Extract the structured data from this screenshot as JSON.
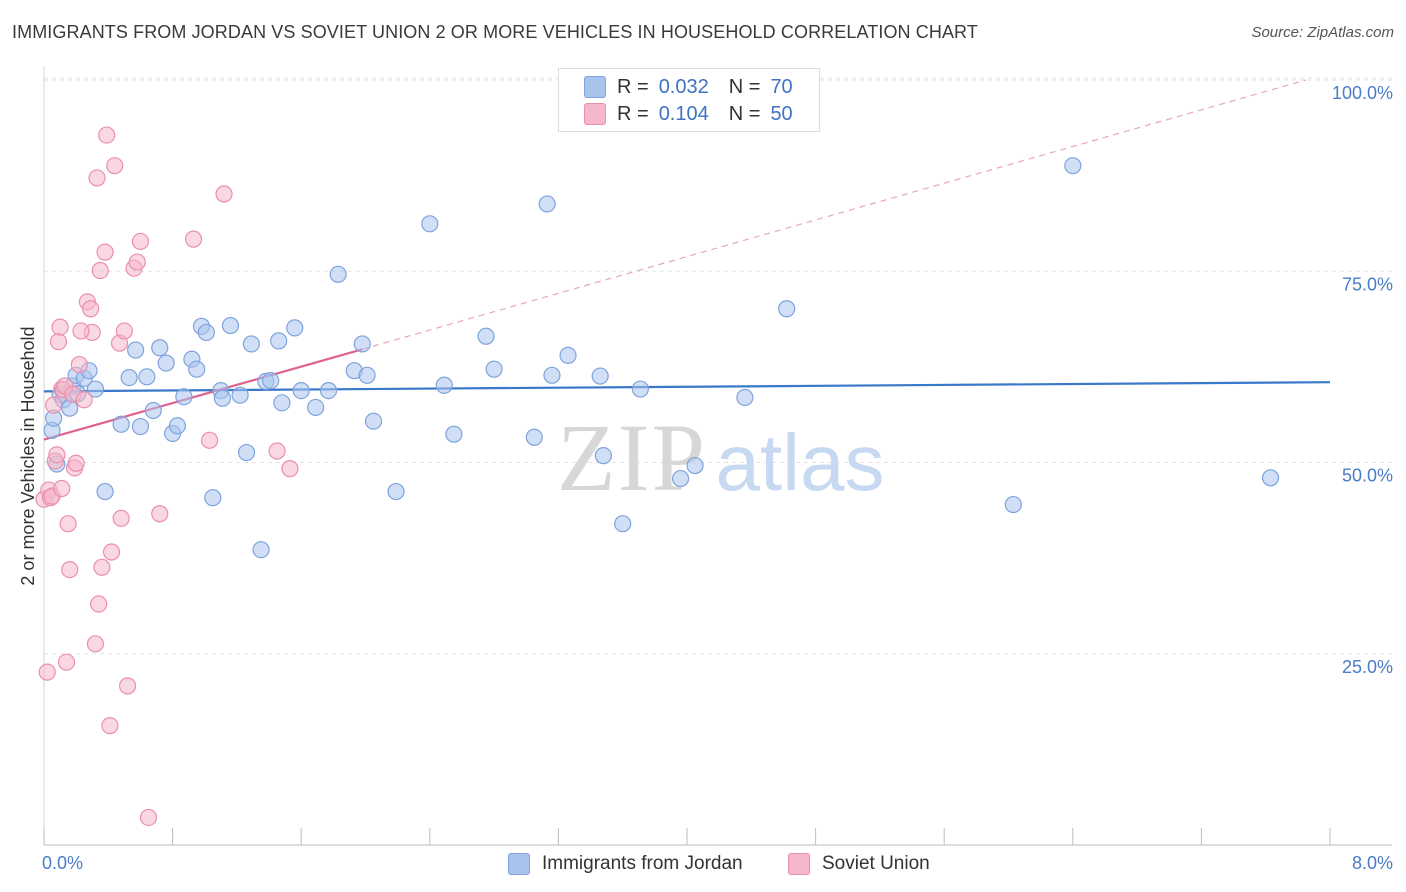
{
  "title": "IMMIGRANTS FROM JORDAN VS SOVIET UNION 2 OR MORE VEHICLES IN HOUSEHOLD CORRELATION CHART",
  "source": "Source: ZipAtlas.com",
  "watermark": {
    "zip": "ZIP",
    "atlas": "atlas"
  },
  "legend_top": [
    {
      "r_label": "R =",
      "r_value": "0.032",
      "n_label": "N =",
      "n_value": "70"
    },
    {
      "r_label": "R =",
      "r_value": "0.104",
      "n_label": "N =",
      "n_value": "50"
    }
  ],
  "colors": {
    "jordan_fill": "#a9c4ec",
    "jordan_stroke": "#7ea3dc",
    "jordan_line": "#3a78c9",
    "soviet_fill": "#f5b8cb",
    "soviet_stroke": "#ea8fad",
    "soviet_line": "#e0608e",
    "grid": "#e3e3e3",
    "axis_label": "#4a7cc8"
  },
  "chart_data": {
    "type": "scatter",
    "title": "IMMIGRANTS FROM JORDAN VS SOVIET UNION 2 OR MORE VEHICLES IN HOUSEHOLD CORRELATION CHART",
    "xlabel": "",
    "ylabel": "2 or more Vehicles in Household",
    "xlim": [
      0,
      8
    ],
    "ylim": [
      0,
      100
    ],
    "x_tick_labels": [
      "0.0%",
      "8.0%"
    ],
    "y_ticks": [
      25,
      50,
      75,
      100
    ],
    "y_tick_labels": [
      "25.0%",
      "50.0%",
      "75.0%",
      "100.0%"
    ],
    "grid": true,
    "legend": "bottom-center",
    "series": [
      {
        "name": "Immigrants from Jordan",
        "R": 0.032,
        "N": 70,
        "trend": {
          "x0": 0.0,
          "y0": 59.3,
          "x1": 8.0,
          "y1": 60.5,
          "dashed_ext": false
        },
        "points": [
          [
            0.05,
            54.2
          ],
          [
            0.08,
            49.8
          ],
          [
            0.1,
            58.9
          ],
          [
            0.12,
            58.2
          ],
          [
            0.16,
            57.1
          ],
          [
            0.18,
            60.0
          ],
          [
            0.2,
            61.4
          ],
          [
            0.25,
            61.0
          ],
          [
            0.28,
            62.0
          ],
          [
            0.32,
            59.6
          ],
          [
            0.38,
            46.2
          ],
          [
            0.48,
            55.0
          ],
          [
            0.53,
            61.1
          ],
          [
            0.57,
            64.7
          ],
          [
            0.6,
            54.7
          ],
          [
            0.64,
            61.2
          ],
          [
            0.68,
            56.8
          ],
          [
            0.72,
            65.0
          ],
          [
            0.76,
            63.0
          ],
          [
            0.8,
            53.8
          ],
          [
            0.83,
            54.8
          ],
          [
            0.87,
            58.6
          ],
          [
            0.92,
            63.5
          ],
          [
            0.95,
            62.2
          ],
          [
            0.98,
            67.8
          ],
          [
            1.01,
            67.0
          ],
          [
            1.05,
            45.4
          ],
          [
            1.1,
            59.4
          ],
          [
            1.11,
            58.4
          ],
          [
            1.16,
            67.9
          ],
          [
            1.22,
            58.8
          ],
          [
            1.26,
            51.3
          ],
          [
            1.29,
            65.5
          ],
          [
            1.35,
            38.6
          ],
          [
            1.38,
            60.6
          ],
          [
            1.41,
            60.7
          ],
          [
            1.46,
            65.9
          ],
          [
            1.48,
            57.8
          ],
          [
            1.56,
            67.6
          ],
          [
            1.6,
            59.4
          ],
          [
            1.69,
            57.2
          ],
          [
            1.77,
            59.4
          ],
          [
            1.83,
            74.6
          ],
          [
            1.93,
            62.0
          ],
          [
            1.98,
            65.5
          ],
          [
            2.01,
            61.4
          ],
          [
            2.05,
            55.4
          ],
          [
            2.19,
            46.2
          ],
          [
            2.4,
            81.2
          ],
          [
            2.49,
            60.1
          ],
          [
            2.55,
            53.7
          ],
          [
            2.75,
            66.5
          ],
          [
            2.8,
            62.2
          ],
          [
            3.05,
            53.3
          ],
          [
            3.13,
            83.8
          ],
          [
            3.16,
            61.4
          ],
          [
            3.26,
            64.0
          ],
          [
            3.46,
            61.3
          ],
          [
            3.48,
            50.9
          ],
          [
            3.6,
            42.0
          ],
          [
            3.71,
            59.6
          ],
          [
            3.96,
            47.9
          ],
          [
            4.05,
            49.6
          ],
          [
            4.36,
            58.5
          ],
          [
            4.62,
            70.1
          ],
          [
            6.03,
            44.5
          ],
          [
            6.4,
            88.8
          ],
          [
            7.63,
            48.0
          ],
          [
            0.06,
            55.8
          ],
          [
            0.21,
            59.0
          ]
        ]
      },
      {
        "name": "Soviet Union",
        "R": 0.104,
        "N": 50,
        "trend": {
          "x0": 0.0,
          "y0": 53.0,
          "x1": 1.98,
          "y1": 64.8,
          "dashed_ext": true,
          "x_ext": 7.85,
          "y_ext": 100.0
        },
        "points": [
          [
            0.0,
            45.2
          ],
          [
            0.02,
            22.6
          ],
          [
            0.03,
            46.4
          ],
          [
            0.04,
            45.4
          ],
          [
            0.05,
            45.6
          ],
          [
            0.06,
            57.5
          ],
          [
            0.07,
            50.2
          ],
          [
            0.09,
            65.8
          ],
          [
            0.1,
            67.7
          ],
          [
            0.11,
            59.6
          ],
          [
            0.12,
            59.5
          ],
          [
            0.13,
            60.0
          ],
          [
            0.14,
            23.9
          ],
          [
            0.15,
            42.0
          ],
          [
            0.16,
            36.0
          ],
          [
            0.18,
            58.9
          ],
          [
            0.19,
            49.3
          ],
          [
            0.2,
            49.9
          ],
          [
            0.22,
            62.8
          ],
          [
            0.25,
            58.2
          ],
          [
            0.27,
            71.0
          ],
          [
            0.29,
            70.1
          ],
          [
            0.3,
            67.0
          ],
          [
            0.32,
            26.3
          ],
          [
            0.33,
            87.2
          ],
          [
            0.34,
            31.5
          ],
          [
            0.35,
            75.1
          ],
          [
            0.36,
            36.3
          ],
          [
            0.38,
            77.5
          ],
          [
            0.39,
            92.8
          ],
          [
            0.41,
            15.6
          ],
          [
            0.42,
            38.3
          ],
          [
            0.44,
            88.8
          ],
          [
            0.47,
            65.6
          ],
          [
            0.48,
            42.7
          ],
          [
            0.5,
            67.2
          ],
          [
            0.52,
            20.8
          ],
          [
            0.56,
            75.4
          ],
          [
            0.58,
            76.2
          ],
          [
            0.6,
            78.9
          ],
          [
            0.65,
            3.6
          ],
          [
            0.72,
            43.3
          ],
          [
            0.93,
            79.2
          ],
          [
            1.03,
            52.9
          ],
          [
            1.12,
            85.1
          ],
          [
            1.45,
            51.5
          ],
          [
            1.53,
            49.2
          ],
          [
            0.11,
            46.6
          ],
          [
            0.08,
            51.0
          ],
          [
            0.23,
            67.2
          ]
        ]
      }
    ]
  }
}
